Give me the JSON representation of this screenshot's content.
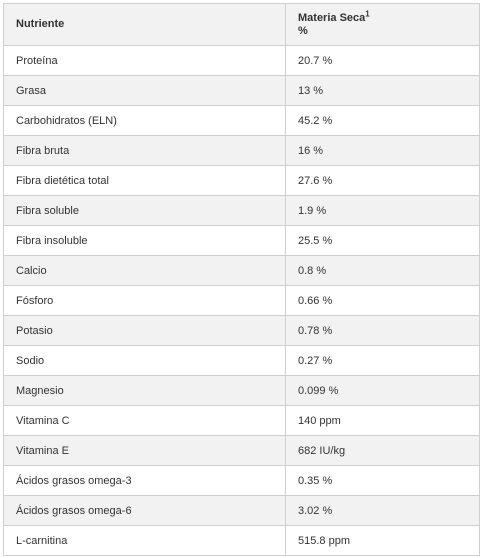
{
  "table": {
    "headers": {
      "nutrient": "Nutriente",
      "dry_matter": "Materia Seca",
      "dry_matter_sup": "1",
      "dry_matter_unit": "%"
    },
    "rows": [
      {
        "nutrient": "Proteína",
        "value": "20.7 %"
      },
      {
        "nutrient": "Grasa",
        "value": "13 %"
      },
      {
        "nutrient": "Carbohidratos (ELN)",
        "value": "45.2 %"
      },
      {
        "nutrient": "Fibra bruta",
        "value": "16 %"
      },
      {
        "nutrient": "Fibra dietética total",
        "value": "27.6 %"
      },
      {
        "nutrient": "Fibra soluble",
        "value": "1.9 %"
      },
      {
        "nutrient": "Fibra insoluble",
        "value": "25.5 %"
      },
      {
        "nutrient": "Calcio",
        "value": "0.8 %"
      },
      {
        "nutrient": "Fósforo",
        "value": "0.66 %"
      },
      {
        "nutrient": "Potasio",
        "value": "0.78 %"
      },
      {
        "nutrient": "Sodio",
        "value": "0.27 %"
      },
      {
        "nutrient": "Magnesio",
        "value": "0.099 %"
      },
      {
        "nutrient": "Vitamina C",
        "value": "140 ppm"
      },
      {
        "nutrient": "Vitamina E",
        "value": "682 IU/kg"
      },
      {
        "nutrient": "Ácidos grasos omega-3",
        "value": "0.35 %"
      },
      {
        "nutrient": "Ácidos grasos omega-6",
        "value": "3.02 %"
      },
      {
        "nutrient": "L-carnitina",
        "value": "515.8 ppm"
      }
    ]
  }
}
